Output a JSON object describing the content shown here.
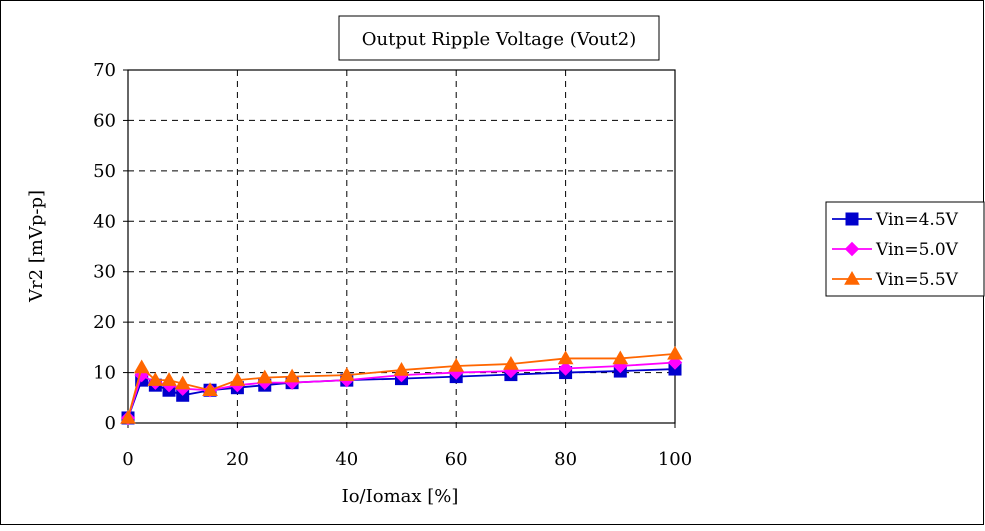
{
  "chart_data": {
    "type": "line",
    "title": "Output Ripple Voltage (Vout2)",
    "xlabel": "Io/Iomax [%]",
    "ylabel": "Vr2 [mVp-p]",
    "xlim": [
      0,
      100
    ],
    "ylim": [
      0,
      70
    ],
    "x_ticks": [
      "0",
      "20",
      "40",
      "60",
      "80",
      "100"
    ],
    "y_ticks": [
      "0",
      "10",
      "20",
      "30",
      "40",
      "50",
      "60",
      "70"
    ],
    "grid": "dashed",
    "legend_position": "right",
    "series": [
      {
        "name": "Vin=4.5V",
        "color": "#0000cc",
        "marker": "square",
        "x": [
          0,
          2.5,
          5,
          7.5,
          10,
          15,
          20,
          25,
          30,
          40,
          50,
          60,
          70,
          80,
          90,
          100
        ],
        "y": [
          1.0,
          8.5,
          7.5,
          6.5,
          5.5,
          6.5,
          7.0,
          7.5,
          8.0,
          8.5,
          8.8,
          9.2,
          9.6,
          10.0,
          10.3,
          10.7
        ]
      },
      {
        "name": "Vin=5.0V",
        "color": "#ff00ff",
        "marker": "diamond",
        "x": [
          0,
          2.5,
          5,
          7.5,
          10,
          15,
          20,
          25,
          30,
          40,
          50,
          60,
          70,
          80,
          90,
          100
        ],
        "y": [
          1.0,
          9.5,
          8.0,
          7.5,
          6.8,
          6.5,
          7.5,
          8.0,
          8.0,
          8.5,
          9.5,
          10.0,
          10.3,
          10.8,
          11.3,
          12.0
        ]
      },
      {
        "name": "Vin=5.5V",
        "color": "#ff6600",
        "marker": "triangle",
        "x": [
          0,
          2.5,
          5,
          7.5,
          10,
          15,
          20,
          25,
          30,
          40,
          50,
          60,
          70,
          80,
          90,
          100
        ],
        "y": [
          1.0,
          11.0,
          8.5,
          8.5,
          7.8,
          6.5,
          8.5,
          9.0,
          9.2,
          9.5,
          10.5,
          11.3,
          11.7,
          12.8,
          12.8,
          13.7
        ]
      }
    ]
  }
}
